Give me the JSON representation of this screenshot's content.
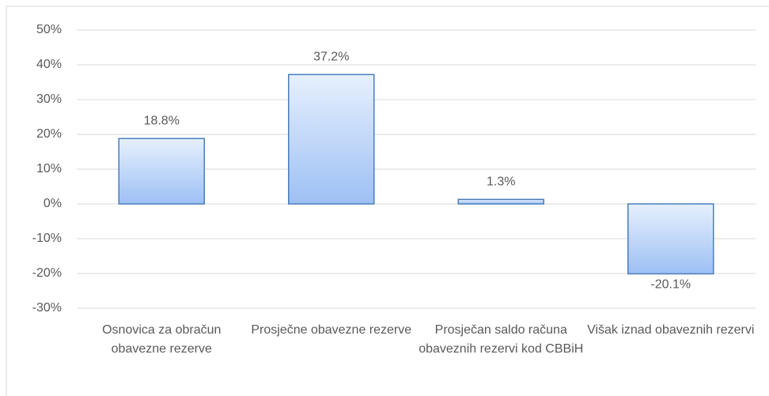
{
  "chart_data": {
    "type": "bar",
    "categories": [
      "Osnovica za obračun obavezne rezerve",
      "Prosječne obavezne rezerve",
      "Prosječan saldo računa obaveznih rezervi kod CBBiH",
      "Višak iznad obaveznih rezervi"
    ],
    "values": [
      18.8,
      37.2,
      1.3,
      -20.1
    ],
    "value_labels": [
      "18.8%",
      "37.2%",
      "1.3%",
      "-20.1%"
    ],
    "color": "#9dc0f4",
    "ylim": [
      -30,
      50
    ],
    "yticks": [
      {
        "value": -30,
        "label": "-30%"
      },
      {
        "value": -20,
        "label": "-20%"
      },
      {
        "value": -10,
        "label": "-10%"
      },
      {
        "value": 0,
        "label": "0%"
      },
      {
        "value": 10,
        "label": "10%"
      },
      {
        "value": 20,
        "label": "20%"
      },
      {
        "value": 30,
        "label": "30%"
      },
      {
        "value": 40,
        "label": "40%"
      },
      {
        "value": 50,
        "label": "50%"
      }
    ],
    "grid": true
  }
}
